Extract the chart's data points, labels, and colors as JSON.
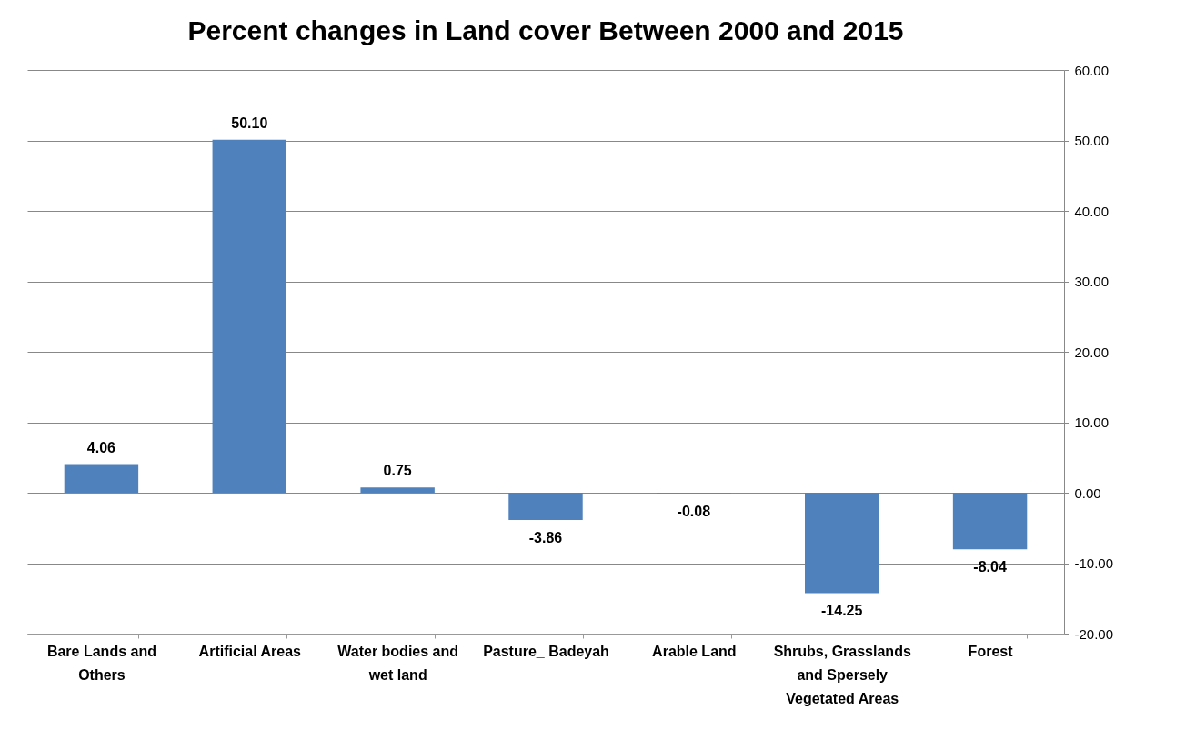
{
  "chart_data": {
    "type": "bar",
    "title": "Percent changes in Land cover Between 2000 and 2015",
    "categories": [
      "Bare Lands and Others",
      "Artificial Areas",
      "Water bodies and wet land",
      "Pasture_ Badeyah",
      "Arable Land",
      "Shrubs, Grasslands and Spersely Vegetated Areas",
      "Forest"
    ],
    "values": [
      4.06,
      50.1,
      0.75,
      -3.86,
      -0.08,
      -14.25,
      -8.04
    ],
    "value_labels": [
      "4.06",
      "50.10",
      "0.75",
      "-3.86",
      "-0.08",
      "-14.25",
      "-8.04"
    ],
    "color": "#4f81bd",
    "ylim": [
      -20,
      60
    ],
    "yticks": [
      {
        "value": -20,
        "label": "-20.00"
      },
      {
        "value": -10,
        "label": "-10.00"
      },
      {
        "value": 0,
        "label": "0.00"
      },
      {
        "value": 10,
        "label": "10.00"
      },
      {
        "value": 20,
        "label": "20.00"
      },
      {
        "value": 30,
        "label": "30.00"
      },
      {
        "value": 40,
        "label": "40.00"
      },
      {
        "value": 50,
        "label": "50.00"
      },
      {
        "value": 60,
        "label": "60.00"
      }
    ],
    "grid": "y"
  }
}
